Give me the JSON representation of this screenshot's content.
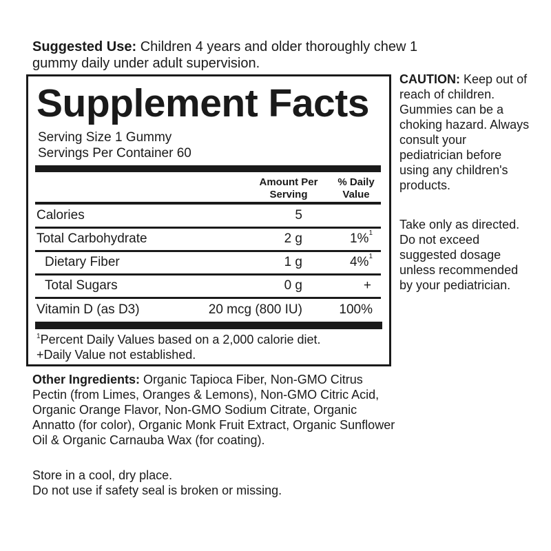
{
  "suggested_use": {
    "label": "Suggested Use:",
    "text": " Children 4 years and older thoroughly chew 1 gummy daily under adult supervision."
  },
  "facts": {
    "title": "Supplement Facts",
    "serving_size": "Serving Size 1 Gummy",
    "servings_per_container": "Servings Per Container 60",
    "col_amount": "Amount Per Serving",
    "col_dv": "% Daily Value",
    "rows": [
      {
        "name": "Calories",
        "amount": "5",
        "dv": "",
        "sup": ""
      },
      {
        "name": "Total Carbohydrate",
        "amount": "2 g",
        "dv": "1%",
        "sup": "1"
      },
      {
        "name": "Dietary Fiber",
        "amount": "1 g",
        "dv": "4%",
        "sup": "1"
      },
      {
        "name": "Total Sugars",
        "amount": "0 g",
        "dv": "+",
        "sup": ""
      },
      {
        "name": "Vitamin D (as D3)",
        "amount": "20 mcg (800 IU)",
        "dv": "100%",
        "sup": ""
      }
    ],
    "footnote1_sup": "1",
    "footnote1": "Percent Daily Values based on a 2,000 calorie diet.",
    "footnote2": "+Daily Value not established."
  },
  "caution": {
    "label": "CAUTION:",
    "text": " Keep out of reach of children. Gummies can be a choking hazard. Always consult your pediatrician before using any children's products."
  },
  "take_only": "Take only as directed. Do not exceed suggested dosage unless recommended by your pediatrician.",
  "other_ingredients": {
    "label": "Other Ingredients:",
    "text": " Organic Tapioca Fiber, Non-GMO Citrus Pectin (from Limes, Oranges & Lemons), Non-GMO Citric Acid, Organic Orange Flavor, Non-GMO Sodium Citrate, Organic Annatto (for color), Organic Monk Fruit Extract, Organic Sunflower Oil & Organic Carnauba Wax (for coating)."
  },
  "storage": [
    "Store in a cool, dry place.",
    "Do not use if safety seal is broken or missing."
  ]
}
